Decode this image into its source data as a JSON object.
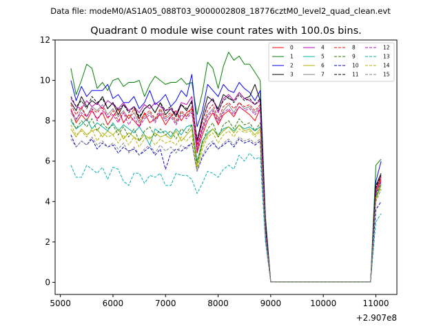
{
  "chart_data": {
    "type": "line",
    "suptitle": "Data file: modeM0/AS1A05_088T03_9000002808_18776cztM0_level2_quad_clean.evt",
    "title": "Quadrant 0 module wise count rates with 100.0s bins.",
    "xlabel": "",
    "ylabel": "",
    "x_offset_label": "+2.907e8",
    "xlim": [
      4900,
      11400
    ],
    "ylim": [
      -0.6,
      12
    ],
    "xticks": [
      5000,
      6000,
      7000,
      8000,
      9000,
      10000,
      11000
    ],
    "yticks": [
      0,
      2,
      4,
      6,
      8,
      10,
      12
    ],
    "grid": false,
    "legend": {
      "placement": "top-right",
      "columns": 4
    },
    "x": [
      5200,
      5300,
      5400,
      5500,
      5600,
      5700,
      5800,
      5900,
      6000,
      6100,
      6200,
      6300,
      6400,
      6500,
      6600,
      6700,
      6800,
      6900,
      7000,
      7100,
      7200,
      7300,
      7400,
      7500,
      7600,
      7700,
      7800,
      7900,
      8000,
      8100,
      8200,
      8300,
      8400,
      8500,
      8600,
      8700,
      8800,
      8900,
      9000,
      10900,
      11000,
      11100
    ],
    "series": [
      {
        "name": "0",
        "color": "#ff0000",
        "dash": "solid",
        "values": [
          8.6,
          7.9,
          8.3,
          8.0,
          8.5,
          8.1,
          8.4,
          7.8,
          8.2,
          8.6,
          7.9,
          8.3,
          8.0,
          7.7,
          8.4,
          7.9,
          8.1,
          8.3,
          7.8,
          8.2,
          8.5,
          8.0,
          8.4,
          8.6,
          6.4,
          7.3,
          8.0,
          8.4,
          7.8,
          8.3,
          8.5,
          8.2,
          8.7,
          8.5,
          8.3,
          8.0,
          8.6,
          2.6,
          0.02,
          0.02,
          4.4,
          5.1
        ]
      },
      {
        "name": "1",
        "color": "#008000",
        "dash": "solid",
        "values": [
          10.6,
          9.3,
          10.0,
          10.8,
          10.6,
          9.6,
          9.9,
          9.5,
          10.0,
          10.1,
          9.7,
          9.9,
          9.9,
          10.0,
          9.2,
          9.8,
          10.2,
          10.0,
          9.8,
          9.9,
          9.9,
          10.1,
          9.8,
          9.9,
          8.3,
          9.4,
          10.9,
          10.6,
          9.6,
          10.7,
          11.4,
          11.0,
          11.2,
          10.8,
          10.8,
          10.4,
          10.0,
          3.3,
          0.02,
          0.02,
          5.8,
          6.1
        ]
      },
      {
        "name": "2",
        "color": "#0000ff",
        "dash": "solid",
        "values": [
          10.0,
          9.0,
          9.7,
          9.2,
          9.5,
          9.5,
          9.5,
          9.8,
          9.1,
          9.3,
          8.9,
          8.9,
          9.2,
          8.6,
          8.9,
          9.5,
          8.8,
          9.0,
          9.3,
          8.7,
          9.0,
          9.5,
          9.2,
          10.3,
          7.7,
          8.5,
          9.8,
          9.5,
          9.2,
          9.8,
          9.5,
          9.4,
          9.9,
          9.6,
          9.4,
          9.0,
          9.5,
          3.0,
          0.02,
          0.02,
          5.0,
          6.0
        ]
      },
      {
        "name": "3",
        "color": "#000000",
        "dash": "solid",
        "values": [
          8.9,
          8.5,
          9.2,
          8.7,
          9.0,
          8.8,
          9.2,
          8.6,
          8.9,
          8.3,
          8.8,
          8.5,
          8.7,
          8.1,
          8.6,
          8.8,
          8.4,
          8.9,
          8.3,
          8.6,
          8.2,
          8.8,
          8.5,
          9.0,
          7.0,
          8.2,
          9.2,
          9.0,
          8.6,
          9.3,
          9.1,
          9.0,
          9.4,
          9.1,
          9.2,
          9.8,
          9.0,
          2.8,
          0.02,
          0.02,
          4.8,
          5.4
        ]
      },
      {
        "name": "4",
        "color": "#c000c0",
        "dash": "solid",
        "values": [
          9.1,
          8.7,
          8.6,
          9.0,
          8.7,
          8.9,
          8.6,
          9.0,
          8.8,
          8.6,
          8.9,
          8.5,
          8.7,
          8.4,
          8.8,
          8.6,
          8.9,
          8.7,
          8.5,
          8.6,
          8.3,
          8.9,
          8.8,
          9.2,
          6.8,
          8.0,
          8.8,
          9.1,
          8.4,
          9.1,
          9.3,
          9.0,
          9.4,
          9.1,
          9.0,
          8.8,
          9.0,
          2.8,
          0.02,
          0.02,
          4.6,
          5.3
        ]
      },
      {
        "name": "5",
        "color": "#00b0a0",
        "dash": "solid",
        "values": [
          8.0,
          7.6,
          7.8,
          8.1,
          7.6,
          7.9,
          7.7,
          7.5,
          7.9,
          7.5,
          7.8,
          7.6,
          7.4,
          7.7,
          7.3,
          6.8,
          7.6,
          7.4,
          7.5,
          7.2,
          7.6,
          7.3,
          7.7,
          7.8,
          6.0,
          7.0,
          7.4,
          7.6,
          7.3,
          7.6,
          7.7,
          7.5,
          7.8,
          7.6,
          7.7,
          7.5,
          7.7,
          2.4,
          0.02,
          0.02,
          4.2,
          4.9
        ]
      },
      {
        "name": "6",
        "color": "#b0b000",
        "dash": "solid",
        "values": [
          7.6,
          7.2,
          7.6,
          7.3,
          7.5,
          7.6,
          7.2,
          7.5,
          7.3,
          7.6,
          7.1,
          7.4,
          7.2,
          7.0,
          7.3,
          7.1,
          7.4,
          7.2,
          7.3,
          7.1,
          7.5,
          7.0,
          7.3,
          7.6,
          5.7,
          6.8,
          7.3,
          7.6,
          7.2,
          7.5,
          7.7,
          7.4,
          7.8,
          7.5,
          7.6,
          7.3,
          7.6,
          2.4,
          0.02,
          0.02,
          4.1,
          4.8
        ]
      },
      {
        "name": "7",
        "color": "#808080",
        "dash": "solid",
        "values": [
          8.4,
          8.0,
          8.6,
          8.2,
          8.7,
          8.5,
          8.8,
          8.3,
          8.6,
          8.2,
          8.5,
          8.1,
          8.4,
          7.9,
          8.2,
          8.4,
          8.0,
          8.5,
          8.1,
          8.3,
          7.9,
          8.4,
          8.2,
          8.5,
          6.6,
          7.6,
          8.3,
          8.6,
          8.0,
          8.5,
          8.8,
          8.4,
          8.9,
          8.6,
          8.7,
          8.4,
          8.7,
          2.7,
          0.02,
          0.02,
          4.5,
          5.2
        ]
      },
      {
        "name": "8",
        "color": "#ff0000",
        "dash": "dashed",
        "values": [
          8.8,
          8.3,
          8.7,
          8.2,
          8.6,
          8.4,
          8.7,
          8.1,
          8.5,
          8.0,
          8.4,
          8.1,
          8.6,
          8.0,
          8.3,
          8.5,
          8.1,
          8.6,
          8.2,
          8.4,
          8.0,
          8.5,
          8.2,
          8.7,
          6.7,
          7.7,
          8.5,
          8.8,
          8.1,
          8.7,
          8.9,
          8.6,
          8.9,
          8.7,
          8.8,
          8.5,
          8.8,
          2.7,
          0.02,
          0.02,
          4.6,
          5.2
        ]
      },
      {
        "name": "9",
        "color": "#2a7a00",
        "dash": "dashed",
        "values": [
          8.1,
          7.6,
          8.0,
          7.7,
          8.1,
          7.5,
          7.9,
          7.6,
          7.8,
          7.3,
          7.7,
          7.2,
          7.6,
          7.0,
          7.5,
          7.7,
          7.2,
          7.6,
          7.3,
          7.5,
          7.1,
          7.6,
          7.4,
          7.8,
          5.9,
          6.9,
          7.6,
          7.9,
          7.2,
          7.8,
          8.0,
          7.6,
          8.1,
          7.8,
          7.9,
          7.5,
          7.9,
          2.5,
          0.02,
          0.02,
          4.3,
          4.9
        ]
      },
      {
        "name": "10",
        "color": "#0000cc",
        "dash": "dashed",
        "values": [
          7.3,
          6.7,
          7.0,
          6.8,
          7.1,
          6.6,
          6.9,
          6.7,
          6.8,
          6.4,
          6.7,
          6.5,
          6.6,
          6.3,
          6.5,
          6.7,
          6.3,
          6.6,
          5.6,
          6.4,
          6.6,
          6.5,
          6.7,
          6.9,
          5.5,
          6.2,
          6.6,
          6.9,
          6.6,
          6.8,
          7.0,
          6.7,
          7.1,
          6.9,
          7.0,
          6.8,
          7.0,
          2.2,
          0.02,
          0.02,
          3.6,
          4.0
        ]
      },
      {
        "name": "11",
        "color": "#000000",
        "dash": "dashed",
        "values": [
          9.2,
          8.7,
          9.0,
          8.6,
          9.2,
          8.9,
          9.1,
          8.6,
          8.9,
          8.5,
          8.8,
          8.4,
          8.7,
          8.2,
          8.6,
          8.8,
          8.4,
          8.9,
          8.5,
          8.7,
          8.3,
          8.8,
          8.6,
          8.9,
          7.1,
          8.0,
          8.8,
          9.1,
          8.5,
          9.0,
          9.2,
          8.9,
          9.3,
          9.0,
          9.1,
          8.8,
          9.1,
          2.8,
          0.02,
          0.02,
          4.7,
          5.3
        ]
      },
      {
        "name": "12",
        "color": "#c000c0",
        "dash": "dashed",
        "values": [
          8.5,
          8.1,
          8.4,
          8.2,
          8.6,
          8.0,
          8.5,
          8.2,
          8.3,
          7.9,
          8.4,
          7.8,
          8.2,
          7.7,
          8.1,
          8.3,
          7.9,
          8.4,
          8.0,
          8.2,
          7.8,
          8.3,
          8.1,
          8.4,
          6.5,
          7.5,
          8.2,
          8.5,
          7.9,
          8.4,
          8.6,
          8.3,
          8.7,
          8.5,
          8.6,
          8.3,
          8.6,
          2.6,
          0.02,
          0.02,
          4.4,
          5.0
        ]
      },
      {
        "name": "13",
        "color": "#00b0b0",
        "dash": "dashed",
        "values": [
          5.8,
          5.2,
          5.2,
          5.8,
          5.6,
          5.4,
          5.7,
          5.1,
          5.7,
          5.6,
          5.0,
          4.8,
          5.4,
          5.4,
          4.9,
          5.3,
          5.2,
          5.4,
          4.8,
          4.8,
          5.4,
          5.3,
          5.3,
          5.1,
          4.4,
          4.9,
          5.5,
          5.4,
          5.2,
          5.6,
          5.8,
          5.6,
          6.3,
          6.0,
          6.4,
          6.1,
          6.2,
          2.0,
          0.02,
          0.02,
          3.0,
          3.4
        ]
      },
      {
        "name": "14",
        "color": "#b0b000",
        "dash": "dashed",
        "values": [
          7.8,
          7.3,
          7.5,
          7.2,
          7.6,
          7.0,
          7.4,
          7.2,
          7.3,
          6.9,
          7.3,
          6.8,
          7.2,
          6.7,
          7.1,
          7.2,
          6.8,
          7.1,
          6.9,
          7.0,
          6.8,
          7.2,
          7.0,
          7.3,
          5.6,
          6.6,
          7.2,
          7.4,
          6.9,
          7.3,
          7.5,
          7.2,
          7.6,
          7.4,
          7.5,
          7.2,
          7.5,
          2.4,
          0.02,
          0.02,
          4.2,
          4.7
        ]
      },
      {
        "name": "15",
        "color": "#808080",
        "dash": "dashed",
        "values": [
          7.1,
          6.7,
          7.0,
          6.8,
          7.2,
          6.8,
          7.0,
          6.7,
          6.9,
          6.6,
          6.9,
          6.4,
          6.7,
          6.3,
          6.6,
          6.8,
          6.4,
          6.8,
          6.5,
          6.7,
          6.4,
          6.8,
          6.6,
          6.9,
          5.5,
          6.3,
          6.8,
          7.0,
          6.6,
          6.9,
          7.1,
          6.8,
          7.2,
          7.0,
          7.1,
          6.9,
          7.1,
          2.3,
          0.02,
          0.02,
          4.0,
          4.6
        ]
      }
    ]
  }
}
